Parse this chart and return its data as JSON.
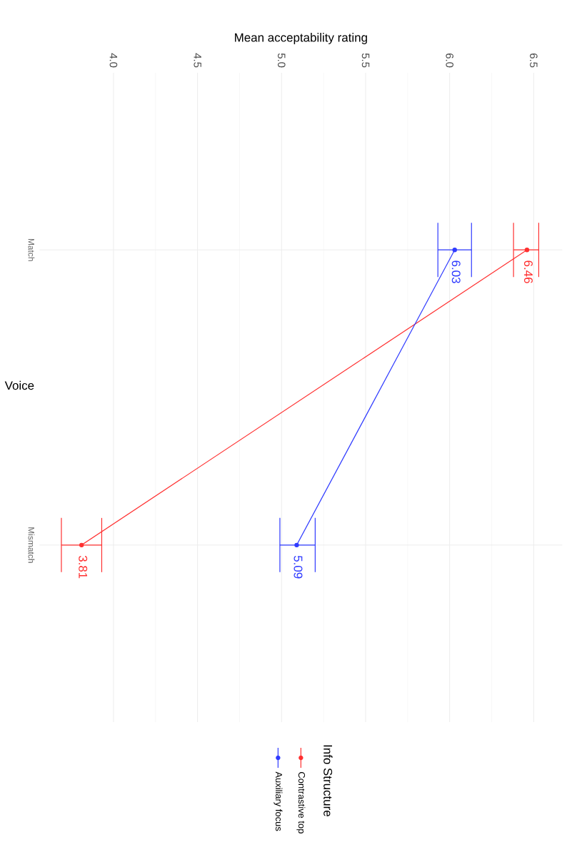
{
  "chart_data": {
    "type": "line",
    "orientation": "horizontal",
    "xlabel": "Mean acceptability rating",
    "ylabel": "Voice",
    "legend_title": "Info Structure",
    "categories": [
      "Match",
      "Mismatch"
    ],
    "series": [
      {
        "name": "Contrastive top",
        "color": "#ff3030",
        "values": [
          6.46,
          3.81
        ],
        "errors": [
          [
            6.38,
            6.53
          ],
          [
            3.69,
            3.93
          ]
        ]
      },
      {
        "name": "Auxiliary focus",
        "color": "#2f3bff",
        "values": [
          6.03,
          5.09
        ],
        "errors": [
          [
            5.93,
            6.13
          ],
          [
            4.99,
            5.2
          ]
        ]
      }
    ],
    "xlim": [
      3.56,
      6.67
    ],
    "xticks": [
      {
        "value": 4,
        "label": "4.0"
      },
      {
        "value": 4.5,
        "label": "4.5"
      },
      {
        "value": 5,
        "label": "5.0"
      },
      {
        "value": 5.5,
        "label": "5.5"
      },
      {
        "value": 6,
        "label": "6.0"
      },
      {
        "value": 6.5,
        "label": "6.5"
      }
    ],
    "data_labels": true,
    "grid": true,
    "legend": "bottom",
    "marker": "circle",
    "line_style": "solid"
  }
}
